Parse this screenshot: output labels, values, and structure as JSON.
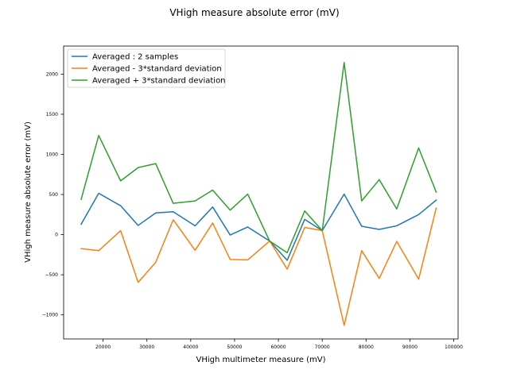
{
  "chart_data": {
    "type": "line",
    "title": "VHigh measure absolute error (mV)",
    "xlabel": "VHigh multimeter measure (mV)",
    "ylabel": "VHigh measure absolute error (mV)",
    "xlim": [
      11000,
      101000
    ],
    "ylim": [
      -1300,
      2350
    ],
    "xticks": [
      20000,
      30000,
      40000,
      50000,
      60000,
      70000,
      80000,
      90000,
      100000
    ],
    "xtick_labels": [
      "20000",
      "30000",
      "40000",
      "50000",
      "60000",
      "70000",
      "80000",
      "90000",
      "100000"
    ],
    "yticks": [
      -1000,
      -500,
      0,
      500,
      1000,
      1500,
      2000
    ],
    "ytick_labels": [
      "−1000",
      "−500",
      "0",
      "500",
      "1000",
      "1500",
      "2000"
    ],
    "grid": false,
    "legend_position": "top-left",
    "x": [
      15000,
      19000,
      24000,
      28000,
      32000,
      36000,
      41000,
      45000,
      49000,
      53000,
      58000,
      62000,
      66000,
      70000,
      75000,
      79000,
      83000,
      87000,
      92000,
      96000
    ],
    "series": [
      {
        "name": "Averaged : 2 samples",
        "color": "#1f77b4",
        "values": [
          130,
          515,
          360,
          115,
          270,
          285,
          110,
          345,
          -5,
          95,
          -80,
          -320,
          190,
          50,
          505,
          105,
          65,
          110,
          250,
          430
        ]
      },
      {
        "name": "Averaged - 3*standard deviation",
        "color": "#ff7f0e",
        "values": [
          -175,
          -200,
          50,
          -595,
          -345,
          185,
          -195,
          145,
          -310,
          -315,
          -80,
          -430,
          90,
          50,
          -1130,
          -200,
          -545,
          -85,
          -555,
          330
        ]
      },
      {
        "name": "Averaged + 3*standard deviation",
        "color": "#2ca02c",
        "values": [
          440,
          1235,
          670,
          835,
          885,
          390,
          420,
          555,
          305,
          505,
          -80,
          -225,
          295,
          50,
          2145,
          420,
          685,
          320,
          1080,
          530
        ]
      }
    ]
  }
}
